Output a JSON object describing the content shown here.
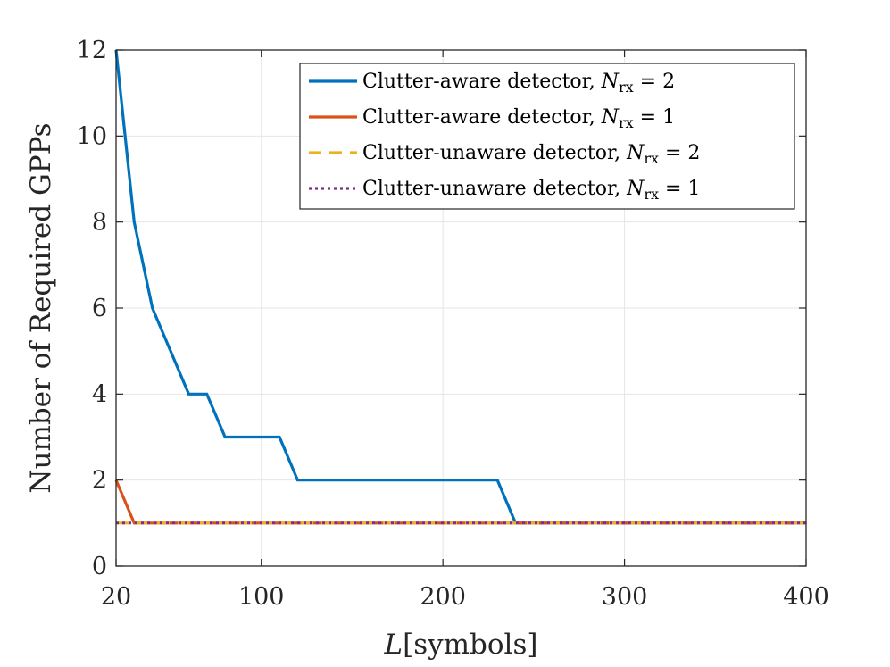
{
  "chart_data": {
    "type": "line",
    "title": "",
    "xlabel_var": "L",
    "xlabel_unit": "[symbols]",
    "ylabel": "Number of Required GPPs",
    "xlim": [
      20,
      400
    ],
    "ylim": [
      0,
      12
    ],
    "xticks": [
      20,
      100,
      200,
      300,
      400
    ],
    "yticks": [
      0,
      2,
      4,
      6,
      8,
      10,
      12
    ],
    "grid": true,
    "legend_position": "top-right",
    "series": [
      {
        "name": "Clutter-aware detector, N_rx = 2",
        "legend_prefix": "Clutter-aware detector, ",
        "legend_sub": "rx",
        "legend_value": "= 2",
        "color": "#0072BD",
        "style": "solid",
        "points": [
          [
            20,
            12
          ],
          [
            30,
            8
          ],
          [
            40,
            6
          ],
          [
            60,
            4
          ],
          [
            70,
            4
          ],
          [
            80,
            3
          ],
          [
            110,
            3
          ],
          [
            120,
            2
          ],
          [
            230,
            2
          ],
          [
            240,
            1
          ],
          [
            400,
            1
          ]
        ]
      },
      {
        "name": "Clutter-aware detector, N_rx = 1",
        "legend_prefix": "Clutter-aware detector, ",
        "legend_sub": "rx",
        "legend_value": "= 1",
        "color": "#D95319",
        "style": "solid",
        "points": [
          [
            20,
            2
          ],
          [
            30,
            1
          ],
          [
            400,
            1
          ]
        ]
      },
      {
        "name": "Clutter-unaware detector, N_rx = 2",
        "legend_prefix": "Clutter-unaware detector, ",
        "legend_sub": "rx",
        "legend_value": "= 2",
        "color": "#EDB120",
        "style": "dashed",
        "points": [
          [
            20,
            1
          ],
          [
            400,
            1
          ]
        ]
      },
      {
        "name": "Clutter-unaware detector, N_rx = 1",
        "legend_prefix": "Clutter-unaware detector, ",
        "legend_sub": "rx",
        "legend_value": "= 1",
        "color": "#7E2F8E",
        "style": "dotted",
        "points": [
          [
            20,
            1
          ],
          [
            400,
            1
          ]
        ]
      }
    ]
  }
}
